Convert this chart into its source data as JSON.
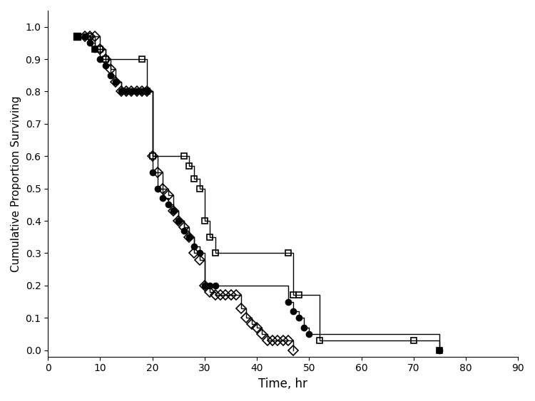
{
  "xlabel": "Time, hr",
  "ylabel": "Cumulative Proportion Surviving",
  "xlim": [
    0,
    90
  ],
  "ylim": [
    -0.02,
    1.05
  ],
  "xticks": [
    0,
    10,
    20,
    30,
    40,
    50,
    60,
    70,
    80,
    90
  ],
  "yticks": [
    0.0,
    0.1,
    0.2,
    0.3,
    0.4,
    0.5,
    0.6,
    0.7,
    0.8,
    0.9,
    1.0
  ],
  "sq_open_x": [
    5.5,
    8,
    9,
    10,
    11,
    18,
    19,
    20,
    26,
    27,
    28,
    29,
    30,
    31,
    32,
    46,
    47,
    48,
    52,
    70,
    75
  ],
  "sq_open_y": [
    0.97,
    0.97,
    0.93,
    0.93,
    0.9,
    0.9,
    0.8,
    0.6,
    0.6,
    0.57,
    0.53,
    0.5,
    0.4,
    0.35,
    0.3,
    0.3,
    0.17,
    0.17,
    0.03,
    0.03,
    0.0
  ],
  "fc_filled_x": [
    5.5,
    7,
    8,
    9,
    10,
    11,
    12,
    13,
    14,
    15,
    16,
    17,
    18,
    19,
    20,
    21,
    22,
    23,
    24,
    25,
    26,
    27,
    28,
    29,
    30,
    31,
    32,
    46,
    47,
    48,
    49,
    50,
    75
  ],
  "fc_filled_y": [
    0.97,
    0.97,
    0.95,
    0.93,
    0.9,
    0.88,
    0.85,
    0.83,
    0.8,
    0.8,
    0.8,
    0.8,
    0.8,
    0.8,
    0.55,
    0.5,
    0.47,
    0.45,
    0.43,
    0.4,
    0.37,
    0.35,
    0.32,
    0.3,
    0.2,
    0.2,
    0.2,
    0.15,
    0.12,
    0.1,
    0.07,
    0.05,
    0.0
  ],
  "od_open_x": [
    7,
    8,
    9,
    10,
    11,
    12,
    13,
    14,
    15,
    16,
    17,
    18,
    19,
    20,
    21,
    22,
    23,
    24,
    25,
    26,
    27,
    28,
    29,
    30,
    31,
    32,
    33,
    34,
    35,
    36,
    37,
    38,
    39,
    40,
    41,
    42,
    43,
    44,
    45,
    46,
    47
  ],
  "od_open_y": [
    0.97,
    0.97,
    0.97,
    0.93,
    0.9,
    0.87,
    0.83,
    0.8,
    0.8,
    0.8,
    0.8,
    0.8,
    0.8,
    0.6,
    0.55,
    0.5,
    0.48,
    0.43,
    0.4,
    0.38,
    0.35,
    0.3,
    0.28,
    0.2,
    0.18,
    0.17,
    0.17,
    0.17,
    0.17,
    0.17,
    0.13,
    0.1,
    0.08,
    0.07,
    0.05,
    0.03,
    0.03,
    0.03,
    0.03,
    0.03,
    0.0
  ],
  "marker_size_sq": 6,
  "marker_size_fc": 6,
  "marker_size_od": 7,
  "line_width": 1.0
}
